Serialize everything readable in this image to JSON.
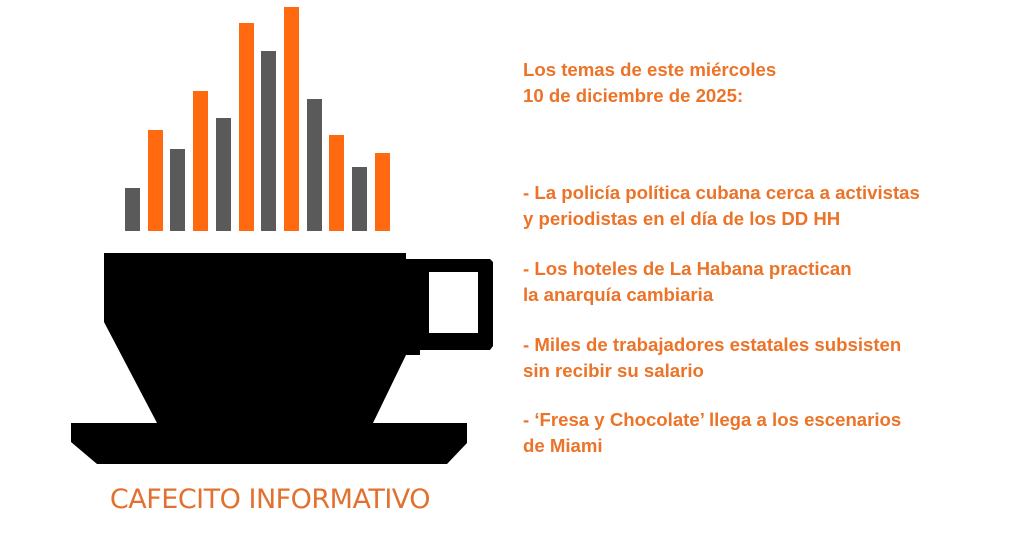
{
  "logo": {
    "brand_name": "CAFECITO INFORMATIVO",
    "colors": {
      "orange": "#ff6a10",
      "gray": "#5a5a5a",
      "cup": "#000000",
      "brand_text": "#e2712f"
    }
  },
  "header": {
    "line1": "Los temas de este miércoles",
    "line2": "10 de diciembre de 2025:"
  },
  "topics": [
    {
      "line1": "- La policía política cubana cerca a activistas",
      "line2": "y periodistas en el día de los DD HH"
    },
    {
      "line1": "- Los hoteles de La Habana practican",
      "line2": "la anarquía cambiaria"
    },
    {
      "line1": "- Miles de trabajadores estatales subsisten",
      "line2": "sin recibir su salario"
    },
    {
      "line1": "- ‘Fresa y Chocolate’ llega a los escenarios",
      "line2": "de Miami"
    }
  ],
  "text_color": "#ec7328"
}
